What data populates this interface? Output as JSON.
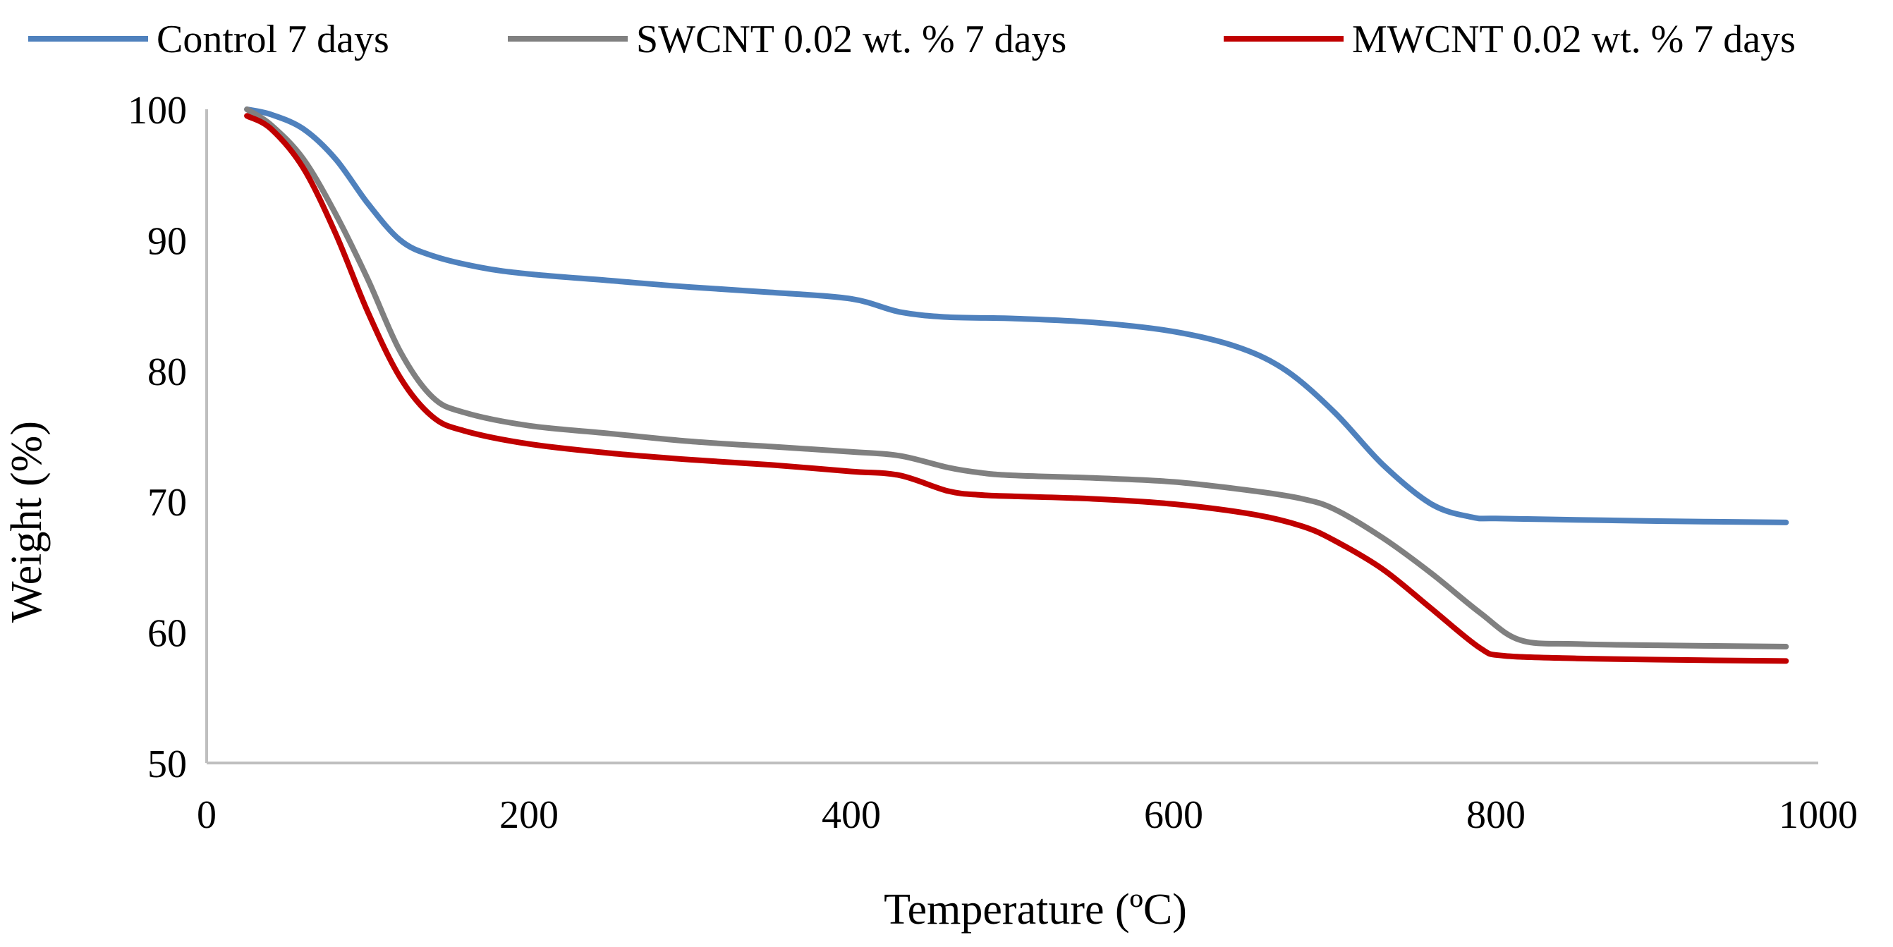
{
  "chart_data": {
    "type": "line",
    "title": "",
    "xlabel": "Temperature (ºC)",
    "ylabel": "Weight   (%)",
    "xlim": [
      0,
      1000
    ],
    "ylim": [
      50,
      100
    ],
    "x_ticks": [
      0,
      200,
      400,
      600,
      800,
      1000
    ],
    "y_ticks": [
      50,
      60,
      70,
      80,
      90,
      100
    ],
    "x_tick_labels": [
      "0",
      "200",
      "400",
      "600",
      "800",
      "1000"
    ],
    "y_tick_labels": [
      "50",
      "60",
      "70",
      "80",
      "90",
      "100"
    ],
    "grid": false,
    "legend_position": "top",
    "series": [
      {
        "name": "Control 7 days",
        "color": "#4f81bd",
        "x": [
          25,
          40,
          60,
          80,
          100,
          120,
          140,
          170,
          200,
          250,
          300,
          350,
          400,
          430,
          460,
          500,
          550,
          600,
          640,
          670,
          700,
          730,
          760,
          785,
          800,
          850,
          900,
          980
        ],
        "y": [
          100,
          99.6,
          98.5,
          96.2,
          92.8,
          90.0,
          88.8,
          87.9,
          87.4,
          86.9,
          86.4,
          86.0,
          85.5,
          84.5,
          84.1,
          84.0,
          83.7,
          83.0,
          81.8,
          80.0,
          76.8,
          72.8,
          69.8,
          68.8,
          68.7,
          68.6,
          68.5,
          68.4
        ]
      },
      {
        "name": "SWCNT 0.02 wt. % 7 days",
        "color": "#808080",
        "x": [
          25,
          40,
          60,
          80,
          100,
          120,
          140,
          160,
          200,
          250,
          300,
          350,
          400,
          430,
          460,
          480,
          500,
          550,
          600,
          650,
          680,
          700,
          730,
          760,
          790,
          815,
          850,
          900,
          980
        ],
        "y": [
          100,
          98.8,
          96.2,
          92.0,
          87.0,
          81.5,
          78.0,
          76.8,
          75.8,
          75.2,
          74.6,
          74.2,
          73.8,
          73.5,
          72.6,
          72.2,
          72.0,
          71.8,
          71.5,
          70.8,
          70.2,
          69.4,
          67.2,
          64.5,
          61.5,
          59.4,
          59.1,
          59.0,
          58.9
        ]
      },
      {
        "name": "MWCNT 0.02 wt. % 7 days",
        "color": "#c00000",
        "x": [
          25,
          40,
          60,
          80,
          100,
          120,
          140,
          160,
          200,
          250,
          300,
          350,
          400,
          430,
          460,
          480,
          500,
          550,
          600,
          650,
          680,
          700,
          730,
          760,
          790,
          805,
          850,
          900,
          980
        ],
        "y": [
          99.5,
          98.5,
          95.5,
          90.5,
          84.5,
          79.5,
          76.5,
          75.4,
          74.4,
          73.7,
          73.2,
          72.8,
          72.3,
          72.0,
          70.8,
          70.5,
          70.4,
          70.2,
          69.8,
          69.0,
          68.1,
          67.0,
          64.8,
          61.8,
          58.8,
          58.2,
          58.0,
          57.9,
          57.8
        ]
      }
    ]
  }
}
